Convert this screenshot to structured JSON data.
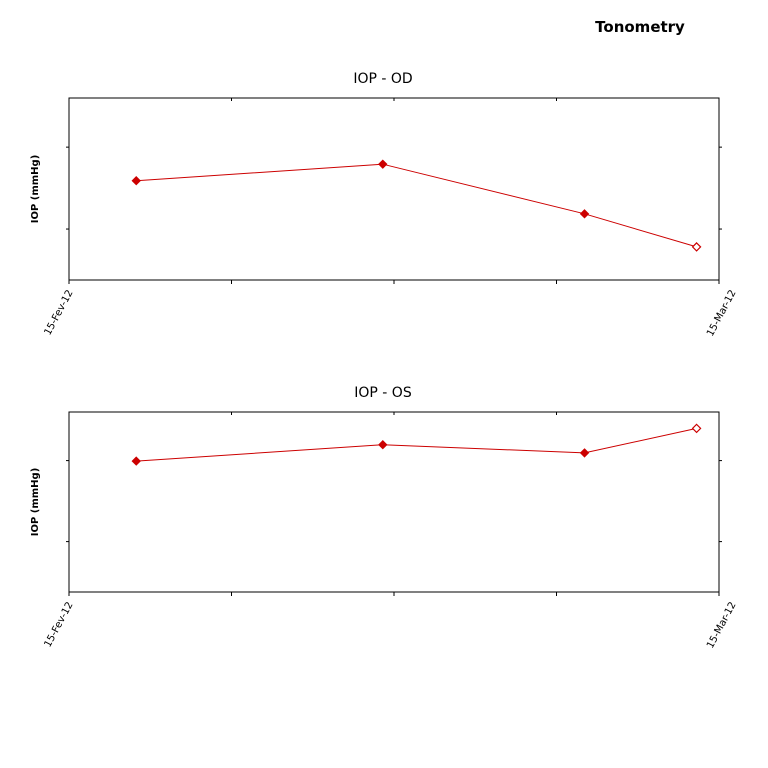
{
  "page": {
    "title": "Tonometry"
  },
  "style": {
    "series_color": "#cc0000",
    "axis_color": "#000000",
    "background": "#ffffff"
  },
  "chart_data": [
    {
      "type": "line",
      "title": "IOP - OD",
      "xlabel": "",
      "ylabel": "IOP (mmHg)",
      "x_range": [
        "15-Fev-12",
        "15-Mar-12"
      ],
      "x_tick_labels": [
        "15-Fev-12",
        "15-Mar-12"
      ],
      "x": [
        "18-Fev-12",
        "29-Fev-12",
        "09-Mar-12",
        "14-Mar-12"
      ],
      "series": [
        {
          "values": [
            17,
            18,
            15,
            13
          ],
          "point_style": [
            "filled",
            "filled",
            "filled",
            "hollow"
          ]
        }
      ],
      "ylim": [
        11,
        22
      ],
      "y_tick_labels": [],
      "grid": false,
      "legend": "none"
    },
    {
      "type": "line",
      "title": "IOP - OS",
      "xlabel": "",
      "ylabel": "IOP (mmHg)",
      "x_range": [
        "15-Fev-12",
        "15-Mar-12"
      ],
      "x_tick_labels": [
        "15-Fev-12",
        "15-Mar-12"
      ],
      "x": [
        "18-Fev-12",
        "29-Fev-12",
        "09-Mar-12",
        "14-Mar-12"
      ],
      "series": [
        {
          "values": [
            19,
            20,
            19.5,
            21
          ],
          "point_style": [
            "filled",
            "filled",
            "filled",
            "hollow"
          ]
        }
      ],
      "ylim": [
        11,
        22
      ],
      "y_tick_labels": [],
      "grid": false,
      "legend": "none"
    }
  ]
}
